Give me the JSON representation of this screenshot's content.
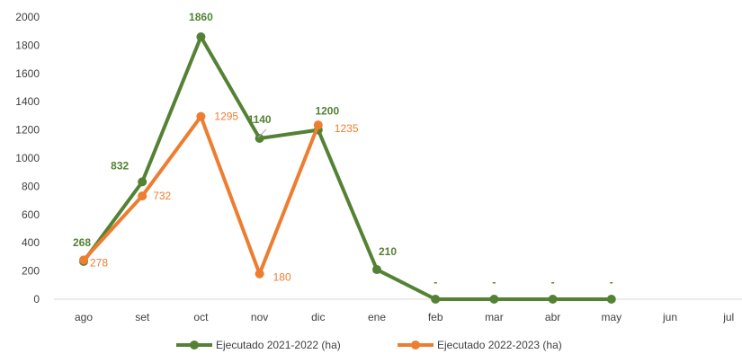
{
  "chart_data": {
    "type": "line",
    "categories": [
      "ago",
      "set",
      "oct",
      "nov",
      "dic",
      "ene",
      "feb",
      "mar",
      "abr",
      "may",
      "jun",
      "jul"
    ],
    "ylim": [
      0,
      2000
    ],
    "yticks": [
      0,
      200,
      400,
      600,
      800,
      1000,
      1200,
      1400,
      1600,
      1800,
      2000
    ],
    "grid": false,
    "legend_position": "bottom",
    "series": [
      {
        "name": "Ejecutado 2021-2022 (ha)",
        "color": "#548235",
        "values": [
          268,
          832,
          1860,
          1140,
          1200,
          210,
          0,
          0,
          0,
          0,
          null,
          null
        ],
        "labels": [
          "268",
          "832",
          "1860",
          "1140",
          "1200",
          "210",
          "-",
          "-",
          "-",
          "-",
          null,
          null
        ]
      },
      {
        "name": "Ejecutado 2022-2023 (ha)",
        "color": "#ED7D31",
        "values": [
          278,
          732,
          1295,
          180,
          1235,
          null,
          null,
          null,
          null,
          null,
          null,
          null
        ],
        "labels": [
          "278",
          "732",
          "1295",
          "180",
          "1235",
          null,
          null,
          null,
          null,
          null,
          null,
          null
        ]
      }
    ]
  }
}
